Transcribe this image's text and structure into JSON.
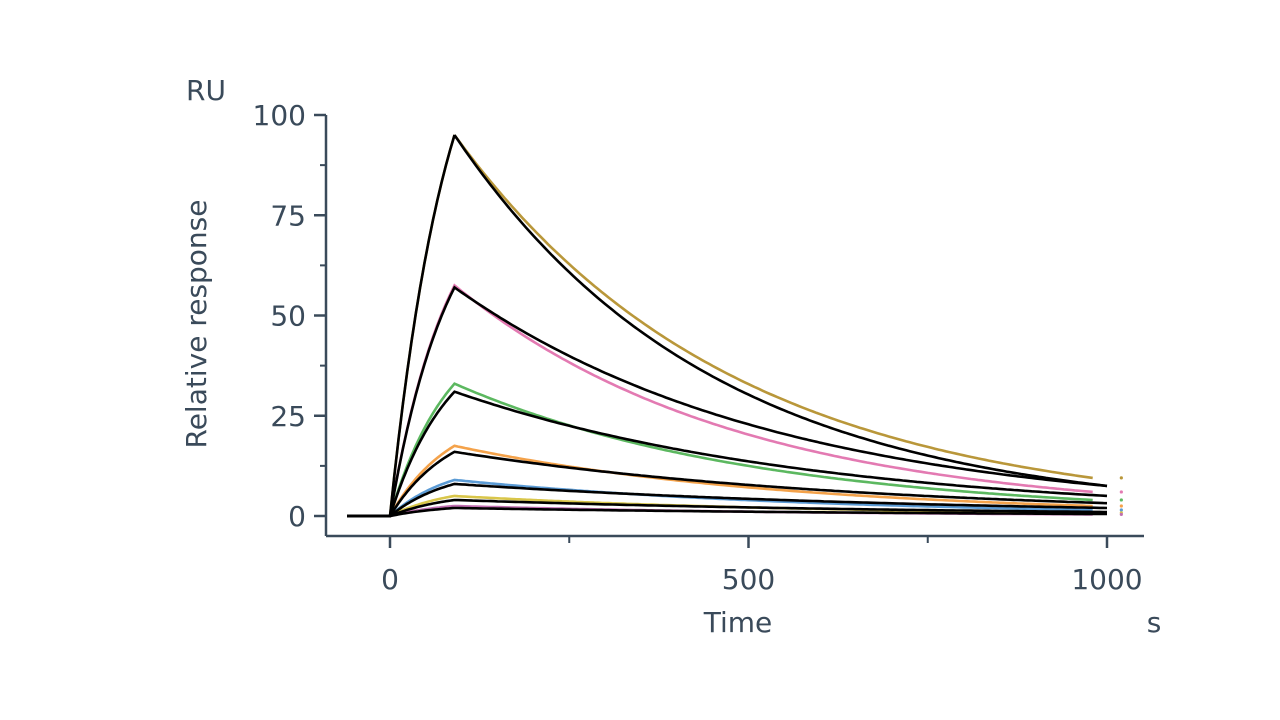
{
  "chart_data": {
    "type": "line",
    "title": "",
    "xlabel": "Time",
    "xunit": "s",
    "ylabel": "Relative response",
    "yunit": "RU",
    "xlim": [
      -60,
      1040
    ],
    "ylim": [
      -5,
      100
    ],
    "xticks": [
      0,
      500,
      1000
    ],
    "xminor": [
      250,
      750
    ],
    "yticks": [
      0,
      25,
      50,
      75,
      100
    ],
    "yminor": [
      12.5,
      37.5,
      62.5,
      87.5
    ],
    "grid": false,
    "legend": "none",
    "colors": {
      "axis": "#3a4a5a",
      "fit": "#000000",
      "series": [
        "#b9973a",
        "#e37ab2",
        "#5cb860",
        "#f4a24a",
        "#5b9bd5",
        "#d9c64a",
        "#c06fb0"
      ]
    },
    "series": [
      {
        "kind": "measured",
        "color": "#b9973a",
        "peak": 95,
        "baseline_end": -30,
        "inject_start": 0,
        "inject_end": 90,
        "end_x": 980,
        "end_value": 9.5
      },
      {
        "kind": "measured",
        "color": "#e37ab2",
        "peak": 57.5,
        "baseline_end": -30,
        "inject_start": 0,
        "inject_end": 90,
        "end_x": 980,
        "end_value": 6
      },
      {
        "kind": "measured",
        "color": "#5cb860",
        "peak": 33,
        "baseline_end": -30,
        "inject_start": 0,
        "inject_end": 90,
        "end_x": 980,
        "end_value": 4
      },
      {
        "kind": "measured",
        "color": "#f4a24a",
        "peak": 17.5,
        "baseline_end": -30,
        "inject_start": 0,
        "inject_end": 90,
        "end_x": 980,
        "end_value": 2.5
      },
      {
        "kind": "measured",
        "color": "#5b9bd5",
        "peak": 9,
        "baseline_end": -30,
        "inject_start": 0,
        "inject_end": 90,
        "end_x": 980,
        "end_value": 1.5
      },
      {
        "kind": "measured",
        "color": "#d9c64a",
        "peak": 5,
        "baseline_end": -30,
        "inject_start": 0,
        "inject_end": 90,
        "end_x": 980,
        "end_value": 0.8
      },
      {
        "kind": "measured",
        "color": "#c06fb0",
        "peak": 2.5,
        "baseline_end": -30,
        "inject_start": 0,
        "inject_end": 90,
        "end_x": 980,
        "end_value": 0.4
      }
    ],
    "fits": [
      {
        "kind": "fit",
        "color": "#000000",
        "peak": 95,
        "end_x": 1000,
        "end_value": 7.5
      },
      {
        "kind": "fit",
        "color": "#000000",
        "peak": 57,
        "end_x": 1000,
        "end_value": 7.5
      },
      {
        "kind": "fit",
        "color": "#000000",
        "peak": 31,
        "end_x": 1000,
        "end_value": 5
      },
      {
        "kind": "fit",
        "color": "#000000",
        "peak": 16,
        "end_x": 1000,
        "end_value": 3.2
      },
      {
        "kind": "fit",
        "color": "#000000",
        "peak": 8,
        "end_x": 1000,
        "end_value": 2
      },
      {
        "kind": "fit",
        "color": "#000000",
        "peak": 4,
        "end_x": 1000,
        "end_value": 1
      },
      {
        "kind": "fit",
        "color": "#000000",
        "peak": 2,
        "end_x": 1000,
        "end_value": 0.5
      }
    ]
  }
}
